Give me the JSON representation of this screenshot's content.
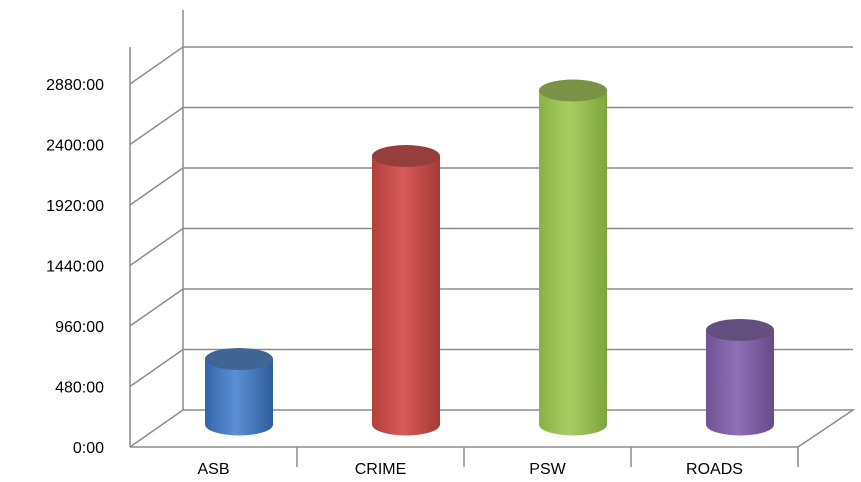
{
  "chart_data": {
    "type": "bar",
    "style": "3d-cylinder",
    "categories": [
      "ASB",
      "CRIME",
      "PSW",
      "ROADS"
    ],
    "values": [
      520,
      2130,
      2650,
      750
    ],
    "value_unit": "hours (h:mm)",
    "colors": [
      "#4f81bd",
      "#c0504d",
      "#9bbb59",
      "#8064a2"
    ],
    "yticks": [
      "0:00",
      "480:00",
      "960:00",
      "1440:00",
      "1920:00",
      "2400:00",
      "2880:00"
    ],
    "ylim": [
      0,
      2880
    ],
    "grid": true,
    "legend": "none",
    "title": "",
    "xlabel": "",
    "ylabel": ""
  }
}
